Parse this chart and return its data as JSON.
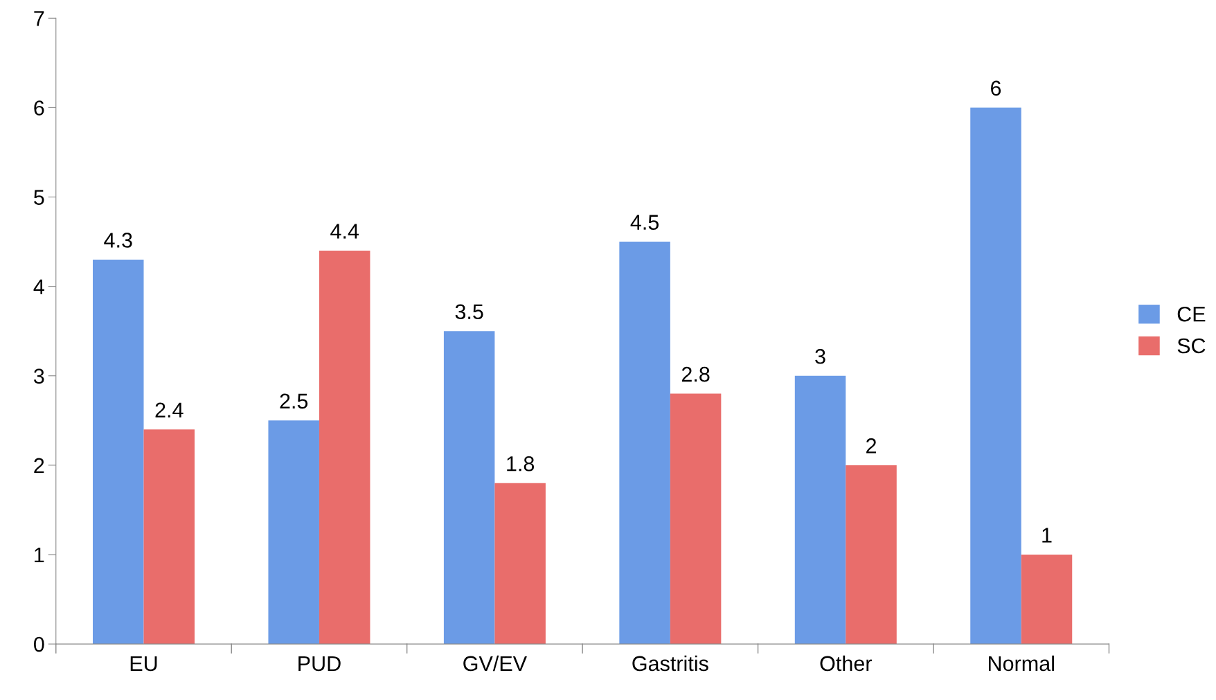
{
  "chart_data": {
    "type": "bar",
    "categories": [
      "EU",
      "PUD",
      "GV/EV",
      "Gastritis",
      "Other",
      "Normal"
    ],
    "series": [
      {
        "name": "CE",
        "color": "#6b9be6",
        "values": [
          4.3,
          2.5,
          3.5,
          4.5,
          3,
          6
        ]
      },
      {
        "name": "SC",
        "color": "#e96d6b",
        "values": [
          2.4,
          4.4,
          1.8,
          2.8,
          2,
          1
        ]
      }
    ],
    "ylim": [
      0,
      7
    ],
    "yticks": [
      0,
      1,
      2,
      3,
      4,
      5,
      6,
      7
    ],
    "data_labels": true,
    "grid": false,
    "legend": "right"
  }
}
